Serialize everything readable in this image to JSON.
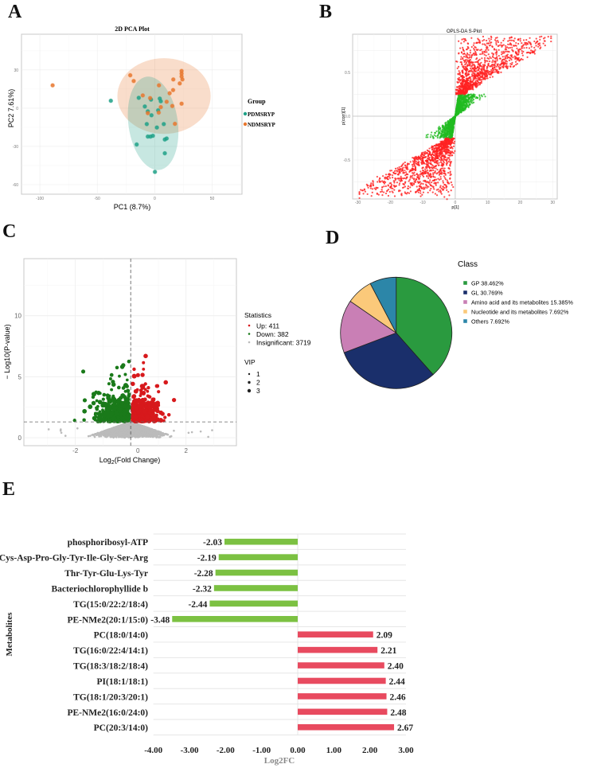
{
  "panel_labels": {
    "a": "A",
    "b": "B",
    "c": "C",
    "d": "D",
    "e": "E"
  },
  "chart_data": [
    {
      "panel": "A",
      "type": "scatter",
      "title": "2D PCA Plot",
      "xlabel": "PC1 (8.7%)",
      "ylabel": "PC2 7.61%)",
      "xlim": [
        -116,
        76
      ],
      "ylim": [
        -67.5,
        58
      ],
      "xticks": [
        "-100",
        "-50",
        "0",
        "50"
      ],
      "xtick_values": [
        -100,
        -50,
        0,
        50
      ],
      "yticks": [
        "-60",
        "-30",
        "0",
        "30"
      ],
      "ytick_values": [
        -60,
        -30,
        0,
        30
      ],
      "grid": true,
      "legend": {
        "title": "Group",
        "placement": "right"
      },
      "series": [
        {
          "name": "PDMSRYP",
          "color": "#1fa187",
          "points": [
            [
              -38.2,
              5.8
            ],
            [
              -13.9,
              8.1
            ],
            [
              -3.2,
              6.7
            ],
            [
              -8.6,
              1.3
            ],
            [
              -6,
              -2.5
            ],
            [
              -2.8,
              -5.6
            ],
            [
              4.4,
              7.5
            ],
            [
              5.3,
              5.4
            ],
            [
              3,
              -1.7
            ],
            [
              -6.9,
              -12.5
            ],
            [
              1.9,
              -15.2
            ],
            [
              7.9,
              -12.5
            ],
            [
              -6,
              -22.3
            ],
            [
              -3.7,
              -22.3
            ],
            [
              -1.6,
              -21.7
            ],
            [
              8.8,
              -24.6
            ],
            [
              10.4,
              -23.8
            ],
            [
              -15.7,
              -28.5
            ],
            [
              8.8,
              -35.4
            ],
            [
              0.2,
              -50
            ]
          ],
          "ellipse": {
            "cx": -1.4,
            "cy": -11.9,
            "rx": 21.5,
            "ry": 36.9,
            "angle": -8
          }
        },
        {
          "name": "NDMSRYP",
          "color": "#e8772e",
          "points": [
            [
              -88.9,
              17.9
            ],
            [
              -21.3,
              25.8
            ],
            [
              -18.3,
              21.3
            ],
            [
              3.7,
              17.9
            ],
            [
              -10.4,
              10
            ],
            [
              -4,
              7.9
            ],
            [
              -6,
              -3.9
            ],
            [
              3.5,
              -3.5
            ],
            [
              5.3,
              0.8
            ],
            [
              10.4,
              5
            ],
            [
              13,
              11.7
            ],
            [
              16,
              14.2
            ],
            [
              16.2,
              22.5
            ],
            [
              23.4,
              24.8
            ],
            [
              23.4,
              27.1
            ],
            [
              23.4,
              29.2
            ],
            [
              24.1,
              22.5
            ],
            [
              21.8,
              19.4
            ],
            [
              23.4,
              3.5
            ],
            [
              15.3,
              1.7
            ],
            [
              17.6,
              -12.3
            ]
          ],
          "ellipse": {
            "cx": 8.1,
            "cy": 9.5,
            "rx": 40.6,
            "ry": 29.7,
            "angle": 0
          }
        }
      ]
    },
    {
      "panel": "B",
      "type": "scatter",
      "title": "OPLS-DA S-Plot",
      "xlabel": "p[1]",
      "ylabel": "p(corr)[1]",
      "xlim": [
        -31.6,
        31.4
      ],
      "ylim": [
        -0.945,
        0.936
      ],
      "xticks": [
        "-30",
        "-20",
        "-10",
        "0",
        "10",
        "20",
        "30"
      ],
      "xtick_values": [
        -30,
        -20,
        -10,
        0,
        10,
        20,
        30
      ],
      "yticks": [
        "-0.5",
        "0.0",
        "0.5"
      ],
      "ytick_values": [
        -0.5,
        0,
        0.5
      ],
      "grid": true,
      "threshold_pcorr": 0.25,
      "n_points": 4000,
      "colors": {
        "significant": "#ff2222",
        "other": "#22bb22"
      }
    },
    {
      "panel": "C",
      "type": "scatter",
      "subtype": "volcano",
      "xlabel_pre": "Log",
      "xlabel_sub": "2",
      "xlabel_post": "(Fold Change)",
      "ylabel": "− Log10(P-value)",
      "xlim": [
        -3.86,
        3.82
      ],
      "ylim": [
        -0.65,
        14.68
      ],
      "xticks": [
        "-2",
        "0",
        "2"
      ],
      "xtick_values": [
        -2,
        0,
        2
      ],
      "yticks": [
        "0",
        "5",
        "10"
      ],
      "ytick_values": [
        0,
        5,
        10
      ],
      "pvalue_cutoff": 1.3,
      "fc_cutoff": 0,
      "legend": {
        "title": "Statistics",
        "items": [
          {
            "label": "Up: 411",
            "count": 411,
            "color": "#d7191c"
          },
          {
            "label": "Down: 382",
            "count": 382,
            "color": "#1a7a1a"
          },
          {
            "label": "Insignificant: 3719",
            "count": 3719,
            "color": "#bbbbbb"
          }
        ],
        "size_title": "VIP",
        "size_items": [
          "1",
          "2",
          "3"
        ]
      }
    },
    {
      "panel": "D",
      "type": "pie",
      "legend_title": "Class",
      "slices": [
        {
          "label": "GP 38.462%",
          "value": 38.462,
          "color": "#2a9a3f"
        },
        {
          "label": "GL 30.769%",
          "value": 30.769,
          "color": "#1a2f6b"
        },
        {
          "label": "Amino acid and its metabolites 15.385%",
          "value": 15.385,
          "color": "#c97fb5"
        },
        {
          "label": "Nucleotide and its metabolites 7.692%",
          "value": 7.692,
          "color": "#fbc97a"
        },
        {
          "label": "Others 7.692%",
          "value": 7.692,
          "color": "#2c86a8"
        }
      ]
    },
    {
      "panel": "E",
      "type": "bar",
      "orientation": "horizontal",
      "xlabel": "Log2FC",
      "ylabel": "Metabolites",
      "xlim": [
        -4,
        3
      ],
      "xticks": [
        "-4.00",
        "-3.00",
        "-2.00",
        "-1.00",
        "0.00",
        "1.00",
        "2.00",
        "3.00"
      ],
      "xtick_values": [
        -4,
        -3,
        -2,
        -1,
        0,
        1,
        2,
        3
      ],
      "colors": {
        "negative": "#7cc142",
        "positive": "#e84a5f"
      },
      "categories": [
        "phosphoribosyl-ATP",
        "Cys-Asp-Pro-Gly-Tyr-Ile-Gly-Ser-Arg",
        "Thr-Tyr-Glu-Lys-Tyr",
        "Bacteriochlorophyllide b",
        "TG(15:0/22:2/18:4)",
        "PE-NMe2(20:1/15:0)",
        "PC(18:0/14:0)",
        "TG(16:0/22:4/14:1)",
        "TG(18:3/18:2/18:4)",
        "PI(18:1/18:1)",
        "TG(18:1/20:3/20:1)",
        "PE-NMe2(16:0/24:0)",
        "PC(20:3/14:0)"
      ],
      "values": [
        -2.03,
        -2.19,
        -2.28,
        -2.32,
        -2.44,
        -3.48,
        2.09,
        2.21,
        2.4,
        2.44,
        2.46,
        2.48,
        2.67
      ],
      "value_labels": [
        "-2.03",
        "-2.19",
        "-2.28",
        "-2.32",
        "-2.44",
        "-3.48",
        "2.09",
        "2.21",
        "2.40",
        "2.44",
        "2.46",
        "2.48",
        "2.67"
      ]
    }
  ]
}
